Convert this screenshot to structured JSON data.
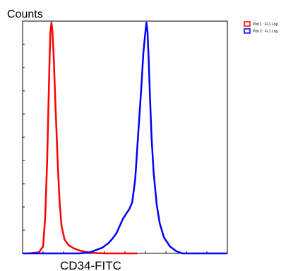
{
  "chart_data": {
    "type": "line",
    "ylabel": "Counts",
    "xlabel": "CD34-FITC",
    "legend_placement": "top-right",
    "grid": false,
    "xlim": [
      0,
      100
    ],
    "ylim": [
      0,
      100
    ],
    "series": [
      {
        "name": "Plot 1 : FL1 Log",
        "color": "#ff0000",
        "x": [
          3,
          8,
          10,
          11,
          12,
          12.8,
          13.2,
          13.6,
          14.1,
          14.6,
          15.2,
          15.9,
          16.6,
          17.3,
          18.1,
          19.0,
          20.5,
          22.5,
          25.0,
          28.0,
          31.0,
          34.5,
          40.0,
          48.0,
          56.0
        ],
        "y": [
          0,
          0.5,
          3,
          15,
          40,
          70,
          85,
          96,
          100,
          96,
          85,
          68,
          52,
          36,
          22,
          12,
          6,
          3.5,
          2.2,
          1.2,
          0.6,
          0.2,
          0,
          0,
          0
        ]
      },
      {
        "name": "Plot 2 : FL1 Log",
        "color": "#0000ff",
        "x": [
          0,
          28,
          33,
          36,
          39,
          42,
          44,
          46,
          47.5,
          49,
          50.5,
          52,
          53.5,
          55,
          56.5,
          58,
          59,
          60,
          60.5,
          61,
          61.6,
          62.2,
          63.0,
          64,
          65.5,
          67,
          69,
          72,
          75,
          78,
          100
        ],
        "y": [
          0,
          0,
          0.5,
          1.5,
          2.5,
          4.5,
          6.5,
          9,
          12,
          15,
          17,
          19,
          22,
          32,
          52,
          72,
          87,
          96,
          100,
          96,
          84,
          68,
          50,
          35,
          21,
          13,
          7,
          3,
          1,
          0,
          0
        ]
      }
    ]
  }
}
